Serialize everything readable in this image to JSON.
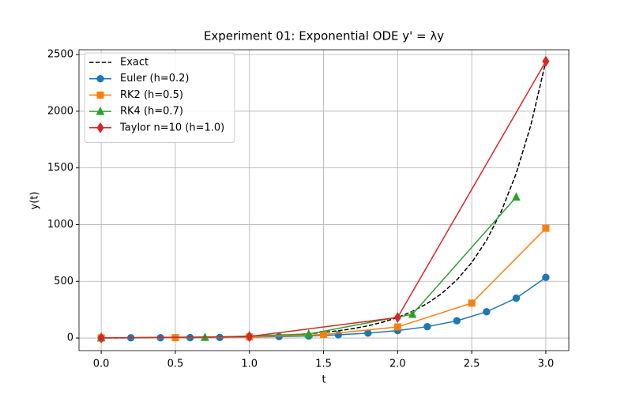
{
  "chart_data": {
    "type": "line",
    "title": "Experiment 01: Exponential ODE y' = λy",
    "x_label": "t",
    "y_label": "y(t)",
    "xlim": [
      -0.15,
      3.155
    ],
    "ylim": [
      -111,
      2542
    ],
    "xticks": [
      {
        "value": 0,
        "label": "0.0"
      },
      {
        "value": 0.5,
        "label": "0.5"
      },
      {
        "value": 1,
        "label": "1.0"
      },
      {
        "value": 1.5,
        "label": "1.5"
      },
      {
        "value": 2,
        "label": "2.0"
      },
      {
        "value": 2.5,
        "label": "2.5"
      },
      {
        "value": 3,
        "label": "3.0"
      }
    ],
    "yticks": [
      0,
      500,
      1000,
      1500,
      2000,
      2500
    ],
    "grid": true,
    "legend": "upper left",
    "series": [
      {
        "name": "Exact",
        "color": "#000000",
        "linestyle": "dashed",
        "marker": "none",
        "x": [
          0,
          0.1,
          0.2,
          0.3,
          0.4,
          0.5,
          0.6,
          0.7,
          0.8,
          0.9,
          1,
          1.1,
          1.2,
          1.3,
          1.4,
          1.5,
          1.6,
          1.7,
          1.8,
          1.9,
          2,
          2.1,
          2.2,
          2.3,
          2.4,
          2.5,
          2.6,
          2.7,
          2.8,
          2.9,
          3
        ],
        "values": [
          1,
          1.297,
          1.682,
          2.181,
          2.829,
          3.669,
          4.759,
          6.172,
          8.004,
          10.38,
          13.46,
          17.46,
          22.65,
          29.37,
          38.09,
          49.4,
          64.07,
          83.1,
          107.77,
          139.77,
          181.27,
          235.1,
          304.9,
          395.4,
          512.9,
          665.1,
          862.6,
          1118.7,
          1451,
          1881.8,
          2440.6
        ]
      },
      {
        "name": "Euler (h=0.2)",
        "color": "#1f77b4",
        "linestyle": "solid",
        "marker": "circle",
        "x": [
          0,
          0.2,
          0.4,
          0.6,
          0.8,
          1,
          1.2,
          1.4,
          1.6,
          1.8,
          2,
          2.2,
          2.4,
          2.6,
          2.8,
          3
        ],
        "values": [
          1,
          1.52,
          2.31,
          3.51,
          5.34,
          8.11,
          12.33,
          18.74,
          28.49,
          43.31,
          65.83,
          100.06,
          152.09,
          231.18,
          351.39,
          534.12
        ]
      },
      {
        "name": "RK2 (h=0.5)",
        "color": "#ff7f0e",
        "linestyle": "solid",
        "marker": "square",
        "x": [
          0,
          0.5,
          1,
          1.5,
          2,
          2.5,
          3
        ],
        "values": [
          1,
          3.145,
          9.89,
          31.11,
          97.84,
          307.7,
          967.7
        ]
      },
      {
        "name": "RK4 (h=0.7)",
        "color": "#2ca02c",
        "linestyle": "solid",
        "marker": "triangle",
        "x": [
          0,
          0.7,
          1.4,
          2.1,
          2.8
        ],
        "values": [
          1,
          5.94,
          35.26,
          209.4,
          1243
        ]
      },
      {
        "name": "Taylor n=10 (h=1.0)",
        "color": "#d62728",
        "linestyle": "solid",
        "marker": "diamond",
        "x": [
          0,
          1,
          2,
          3
        ],
        "values": [
          1,
          13.46,
          181.3,
          2440
        ]
      }
    ]
  }
}
